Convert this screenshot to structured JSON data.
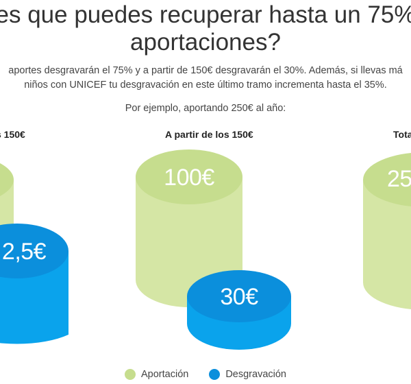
{
  "title_line1": "es que puedes recuperar hasta un 75%",
  "title_line2": "aportaciones?",
  "paragraph_line1": "aportes desgravarán el 75% y a partir de 150€ desgravarán el 30%. Además, si llevas má",
  "paragraph_line2": "niños con UNICEF tu desgravación en este último tramo incrementa hasta el 35%.",
  "example_text": "Por ejemplo, aportando 250€ al año:",
  "columns": [
    {
      "heading": "s 150€",
      "aportacion_label": "",
      "desgravacion_label": "2,5€"
    },
    {
      "heading": "A partir de los 150€",
      "aportacion_label": "100€",
      "desgravacion_label": "30€"
    },
    {
      "heading": "Tota",
      "aportacion_label": "25",
      "desgravacion_label": ""
    }
  ],
  "legend": {
    "aportacion": "Aportación",
    "desgravacion": "Desgravación"
  },
  "colors": {
    "aportacion_top": "#c6dd8e",
    "aportacion_body": "#d5e6a5",
    "desgravacion_top": "#0b8fdc",
    "desgravacion_body": "#0aa3ec"
  }
}
